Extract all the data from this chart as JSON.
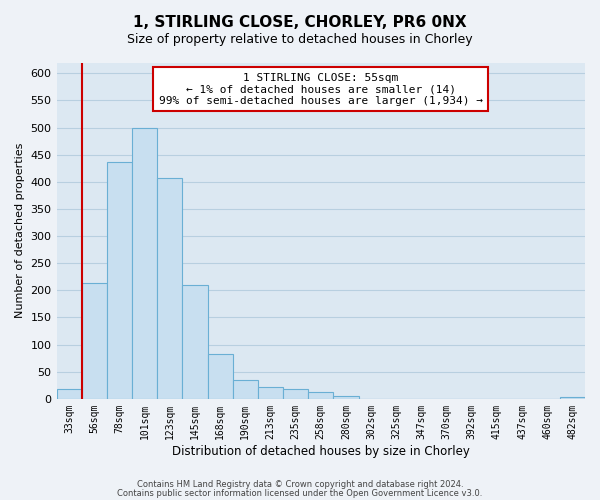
{
  "title": "1, STIRLING CLOSE, CHORLEY, PR6 0NX",
  "subtitle": "Size of property relative to detached houses in Chorley",
  "xlabel": "Distribution of detached houses by size in Chorley",
  "ylabel": "Number of detached properties",
  "bar_labels": [
    "33sqm",
    "56sqm",
    "78sqm",
    "101sqm",
    "123sqm",
    "145sqm",
    "168sqm",
    "190sqm",
    "213sqm",
    "235sqm",
    "258sqm",
    "280sqm",
    "302sqm",
    "325sqm",
    "347sqm",
    "370sqm",
    "392sqm",
    "415sqm",
    "437sqm",
    "460sqm",
    "482sqm"
  ],
  "bar_values": [
    18,
    213,
    437,
    500,
    408,
    210,
    83,
    35,
    22,
    18,
    13,
    5,
    0,
    0,
    0,
    0,
    0,
    0,
    0,
    0,
    3
  ],
  "bar_color": "#c8dff0",
  "bar_edge_color": "#6aafd4",
  "marker_line_color": "#cc0000",
  "ylim": [
    0,
    620
  ],
  "yticks": [
    0,
    50,
    100,
    150,
    200,
    250,
    300,
    350,
    400,
    450,
    500,
    550,
    600
  ],
  "annotation_line1": "1 STIRLING CLOSE: 55sqm",
  "annotation_line2": "← 1% of detached houses are smaller (14)",
  "annotation_line3": "99% of semi-detached houses are larger (1,934) →",
  "annotation_box_color": "#ffffff",
  "annotation_box_edge_color": "#cc0000",
  "footer_line1": "Contains HM Land Registry data © Crown copyright and database right 2024.",
  "footer_line2": "Contains public sector information licensed under the Open Government Licence v3.0.",
  "background_color": "#eef2f7",
  "plot_bg_color": "#dce8f2",
  "grid_color": "#b8cfe0",
  "title_fontsize": 11,
  "subtitle_fontsize": 9
}
